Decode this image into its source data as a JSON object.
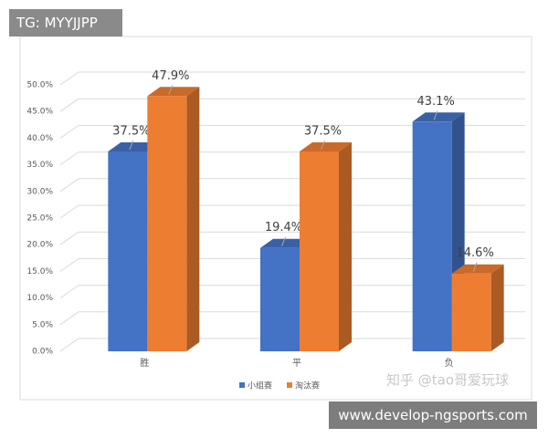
{
  "chart_data": {
    "type": "bar3d",
    "categories": [
      "胜",
      "平",
      "负"
    ],
    "series": [
      {
        "name": "小组赛",
        "color": "#4472c4",
        "values": [
          37.5,
          19.4,
          43.1
        ],
        "value_labels": [
          "37.5%",
          "19.4%",
          "43.1%"
        ]
      },
      {
        "name": "淘汰赛",
        "color": "#ed7d31",
        "values": [
          47.9,
          37.5,
          14.6
        ],
        "value_labels": [
          "47.9%",
          "37.5%",
          "14.6%"
        ]
      }
    ],
    "ylim": [
      0,
      50
    ],
    "yticks": [
      {
        "value": 0,
        "label": "0.0%"
      },
      {
        "value": 5,
        "label": "5.0%"
      },
      {
        "value": 10,
        "label": "10.0%"
      },
      {
        "value": 15,
        "label": "15.0%"
      },
      {
        "value": 20,
        "label": "20.0%"
      },
      {
        "value": 25,
        "label": "25.0%"
      },
      {
        "value": 30,
        "label": "30.0%"
      },
      {
        "value": 35,
        "label": "35.0%"
      },
      {
        "value": 40,
        "label": "40.0%"
      },
      {
        "value": 45,
        "label": "45.0%"
      },
      {
        "value": 50,
        "label": "50.0%"
      }
    ],
    "grid": true
  },
  "overlays": {
    "tag": "TG: MYYJJPP",
    "url": "www.develop-ngsports.com",
    "watermark": "知乎 @tao哥爱玩球"
  }
}
